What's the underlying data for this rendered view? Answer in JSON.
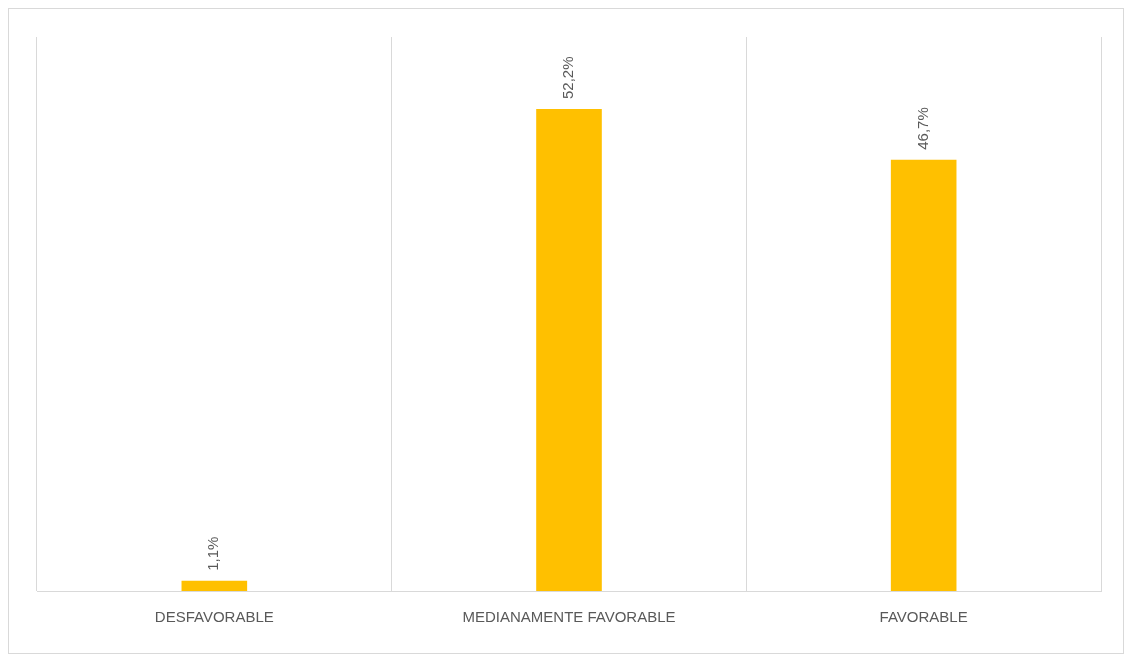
{
  "chart_data": {
    "type": "bar",
    "categories": [
      "DESFAVORABLE",
      "MEDIANAMENTE FAVORABLE",
      "FAVORABLE"
    ],
    "values": [
      1.1,
      52.2,
      46.7
    ],
    "value_labels": [
      "1,1%",
      "52,2%",
      "46,7%"
    ],
    "color": "#ffc000",
    "ylim": [
      0,
      60
    ],
    "grid": "x",
    "legend": false
  }
}
